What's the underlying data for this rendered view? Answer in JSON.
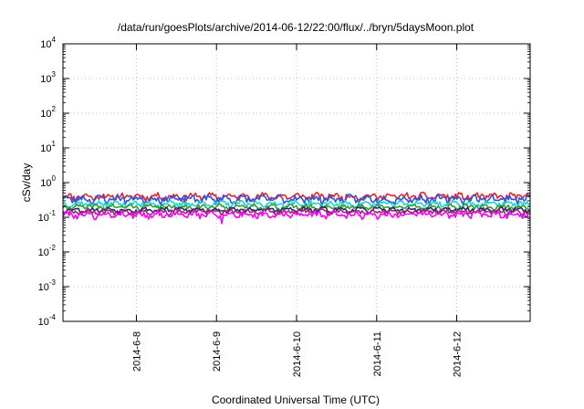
{
  "chart_data": {
    "type": "line",
    "title": "/data/run/goesPlots/archive/2014-06-12/22:00/flux/../bryn/5daysMoon.plot",
    "xlabel": "Coordinated Universal Time (UTC)",
    "ylabel": "cSv/day",
    "yscale": "log",
    "ylim": [
      0.0001,
      10000
    ],
    "xlim": [
      "2014-06-07T02:00",
      "2014-06-12T22:00"
    ],
    "y_ticks": [
      {
        "base": "10",
        "exp": "4",
        "value": 10000
      },
      {
        "base": "10",
        "exp": "3",
        "value": 1000
      },
      {
        "base": "10",
        "exp": "2",
        "value": 100
      },
      {
        "base": "10",
        "exp": "1",
        "value": 10
      },
      {
        "base": "10",
        "exp": "0",
        "value": 1
      },
      {
        "base": "10",
        "exp": "-1",
        "value": 0.1
      },
      {
        "base": "10",
        "exp": "-2",
        "value": 0.01
      },
      {
        "base": "10",
        "exp": "-3",
        "value": 0.001
      },
      {
        "base": "10",
        "exp": "-4",
        "value": 0.0001
      }
    ],
    "x_ticks": [
      {
        "label": "2014-6-8",
        "value": "2014-06-08T00:00"
      },
      {
        "label": "2014-6-9",
        "value": "2014-06-09T00:00"
      },
      {
        "label": "2014-6-10",
        "value": "2014-06-10T00:00"
      },
      {
        "label": "2014-6-11",
        "value": "2014-06-11T00:00"
      },
      {
        "label": "2014-6-12",
        "value": "2014-06-12T00:00"
      }
    ],
    "grid": true,
    "series": [
      {
        "color": "#e0252b",
        "base": 0.4,
        "amp": 0.14,
        "seed": 11
      },
      {
        "color": "#2f52e6",
        "base": 0.34,
        "amp": 0.13,
        "seed": 23
      },
      {
        "color": "#22d3d3",
        "base": 0.245,
        "amp": 0.07,
        "seed": 37
      },
      {
        "color": "#2e9e3a",
        "base": 0.2,
        "amp": 0.05,
        "seed": 41
      },
      {
        "color": "#2a2a6a",
        "base": 0.165,
        "amp": 0.04,
        "seed": 53
      },
      {
        "color": "#9a2a6a",
        "base": 0.145,
        "amp": 0.035,
        "seed": 67
      },
      {
        "color": "#ff00ff",
        "base": 0.12,
        "amp": 0.04,
        "seed": 79
      }
    ]
  }
}
